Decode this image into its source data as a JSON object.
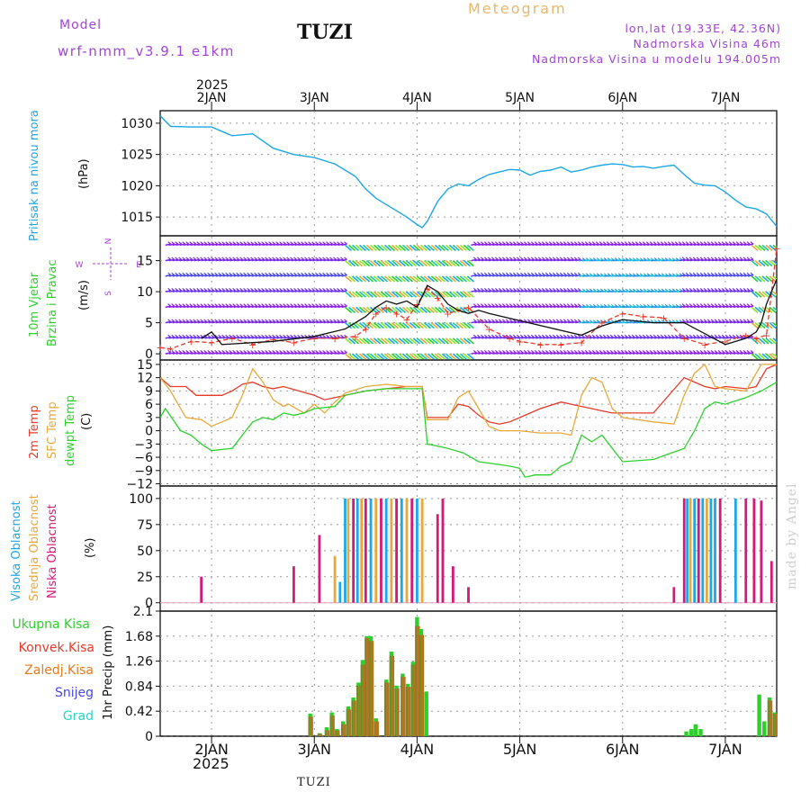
{
  "header": {
    "model_label": "Model",
    "model_run": "wrf-nmm_v3.9.1  e1km",
    "station": "TUZI",
    "chart_name": "Meteogram",
    "loc_line1": "lon,lat (19.33E, 42.36N)",
    "loc_line2": "Nadmorska Visina 46m",
    "loc_line3": "Nadmorska Visina u modelu 194.005m"
  },
  "footer": {
    "station": "TUZI",
    "watermark": "made by Angel"
  },
  "colors": {
    "pressure": "#1ca7e8",
    "temp2m": "#e83a2a",
    "sfc_temp": "#e8a83a",
    "dewpoint": "#2bd12b",
    "wind_label": "#2bd12b",
    "high_cloud": "#1ca7e8",
    "mid_cloud": "#e8a83a",
    "low_cloud": "#d6187a",
    "precip_total": "#2bd12b",
    "precip_conv": "#e83a2a",
    "precip_strat": "#e87a1a",
    "snow": "#4a48e8",
    "hail": "#2bd1c8"
  },
  "chart_data": [
    {
      "type": "line",
      "panel": "pressure",
      "ylabel_colored": "Pritisak na nivou mora",
      "unit": "(hPa)",
      "yticks": [
        1015,
        1020,
        1025,
        1030
      ],
      "ylim": [
        1012,
        1032
      ],
      "x_top_labels": [
        "2JAN",
        "3JAN",
        "4JAN",
        "5JAN",
        "6JAN",
        "7JAN"
      ],
      "year_top": "2025",
      "grid": true,
      "series": [
        {
          "x": [
            1.5,
            1.6,
            1.8,
            2.0,
            2.2,
            2.4,
            2.6,
            2.8,
            3.0,
            3.2,
            3.4,
            3.5,
            3.6,
            3.7,
            3.8,
            3.9,
            4.0,
            4.05,
            4.1,
            4.2,
            4.3,
            4.4,
            4.5,
            4.6,
            4.7,
            4.8,
            4.9,
            5.0,
            5.1,
            5.2,
            5.3,
            5.4,
            5.5,
            5.6,
            5.7,
            5.8,
            5.9,
            6.0,
            6.1,
            6.2,
            6.3,
            6.4,
            6.5,
            6.6,
            6.7,
            6.8,
            6.9,
            7.0,
            7.1,
            7.2,
            7.3,
            7.4,
            7.5
          ],
          "y": [
            1031.2,
            1029.5,
            1029.4,
            1029.4,
            1028.0,
            1028.3,
            1026.0,
            1025.0,
            1024.5,
            1023.5,
            1021.5,
            1019.5,
            1018.0,
            1017.0,
            1016.0,
            1015.0,
            1013.8,
            1013.3,
            1014.3,
            1017.5,
            1019.5,
            1020.3,
            1020.0,
            1021.0,
            1021.8,
            1022.2,
            1022.6,
            1022.5,
            1021.7,
            1022.3,
            1022.5,
            1023.0,
            1022.2,
            1022.5,
            1023.0,
            1023.3,
            1023.5,
            1023.4,
            1023.0,
            1023.1,
            1022.8,
            1023.1,
            1023.3,
            1021.8,
            1020.4,
            1020.1,
            1020.0,
            1019.0,
            1017.7,
            1016.6,
            1016.3,
            1015.5,
            1013.5
          ]
        }
      ]
    },
    {
      "type": "line",
      "panel": "wind",
      "ylabel_colored1": "10m Vjetar",
      "ylabel_colored2": "Brzina i Pravac",
      "unit": "(m/s)",
      "legend_compass": [
        "N",
        "W",
        "E",
        "S"
      ],
      "yticks": [
        0,
        5,
        10,
        15
      ],
      "ylim": [
        -1,
        19
      ],
      "series": [
        {
          "name": "gust",
          "x": [
            1.5,
            1.6,
            1.8,
            2.0,
            2.2,
            2.4,
            2.6,
            2.8,
            3.0,
            3.2,
            3.4,
            3.5,
            3.6,
            3.7,
            3.8,
            3.9,
            4.0,
            4.1,
            4.2,
            4.3,
            4.5,
            4.7,
            4.9,
            5.0,
            5.2,
            5.4,
            5.6,
            5.8,
            6.0,
            6.2,
            6.4,
            6.6,
            6.8,
            7.0,
            7.2,
            7.3,
            7.4,
            7.5
          ],
          "y": [
            1.0,
            0.8,
            2.0,
            1.8,
            2.5,
            1.5,
            2.3,
            1.8,
            2.5,
            2.5,
            2.8,
            4.0,
            6.5,
            7.5,
            6.5,
            5.5,
            8.0,
            10.5,
            9.0,
            6.5,
            7.5,
            4.0,
            2.5,
            2.0,
            1.5,
            1.5,
            1.8,
            5.0,
            6.5,
            6.0,
            5.8,
            2.5,
            1.5,
            2.0,
            3.0,
            2.5,
            3.0,
            17.0
          ]
        },
        {
          "name": "speed",
          "x": [
            1.9,
            2.0,
            2.1,
            2.4,
            2.6,
            3.0,
            3.3,
            3.5,
            3.6,
            3.7,
            3.8,
            3.9,
            4.0,
            4.1,
            4.2,
            4.3,
            4.4,
            4.5,
            4.6,
            4.7,
            5.6,
            5.8,
            6.0,
            6.3,
            6.6,
            7.0,
            7.2,
            7.3,
            7.35,
            7.4,
            7.5
          ],
          "y": [
            2.5,
            3.5,
            1.5,
            1.8,
            2.0,
            2.8,
            4.0,
            6.0,
            7.5,
            8.5,
            8.0,
            8.5,
            7.5,
            11.0,
            10.0,
            8.0,
            7.0,
            6.5,
            7.0,
            6.5,
            3.0,
            4.5,
            5.5,
            5.0,
            5.0,
            1.5,
            2.5,
            3.5,
            5.0,
            8.0,
            12.0
          ]
        }
      ]
    },
    {
      "type": "line",
      "panel": "temperature",
      "labels": [
        "2m Temp",
        "SFC Temp",
        "dewpt Temp"
      ],
      "unit": "(C)",
      "yticks": [
        -12,
        -9,
        -6,
        -3,
        0,
        3,
        6,
        9,
        12,
        15
      ],
      "ylim": [
        -12.5,
        16
      ],
      "series": [
        {
          "name": "2m Temp",
          "x": [
            1.5,
            1.6,
            1.75,
            1.85,
            2.0,
            2.1,
            2.2,
            2.3,
            2.4,
            2.5,
            2.6,
            2.7,
            2.85,
            3.0,
            3.1,
            3.2,
            3.3,
            3.5,
            3.7,
            3.9,
            4.05,
            4.1,
            4.3,
            4.4,
            4.5,
            4.6,
            4.7,
            4.8,
            4.9,
            5.0,
            5.2,
            5.4,
            5.5,
            5.6,
            5.7,
            5.8,
            5.9,
            6.0,
            6.3,
            6.6,
            6.8,
            6.9,
            7.0,
            7.2,
            7.3,
            7.4,
            7.5
          ],
          "y": [
            12,
            10,
            10,
            8,
            8,
            8,
            9,
            10.5,
            11,
            10,
            9.5,
            10,
            9,
            8,
            7,
            7.5,
            8,
            9,
            9.5,
            10,
            10,
            3,
            3,
            6,
            5.5,
            3.5,
            2,
            1.5,
            2,
            3,
            5,
            6.5,
            6,
            5.5,
            5,
            4.5,
            4,
            4,
            4,
            12,
            10,
            9.5,
            10,
            9.5,
            10,
            14,
            15
          ]
        },
        {
          "name": "SFC Temp",
          "x": [
            1.5,
            1.6,
            1.75,
            1.9,
            2.0,
            2.2,
            2.3,
            2.4,
            2.5,
            2.6,
            2.7,
            2.75,
            2.9,
            3.0,
            3.1,
            3.2,
            3.3,
            3.5,
            3.7,
            3.9,
            4.05,
            4.1,
            4.3,
            4.4,
            4.5,
            4.6,
            4.7,
            4.8,
            4.9,
            5.0,
            5.2,
            5.3,
            5.4,
            5.5,
            5.6,
            5.7,
            5.8,
            5.9,
            6.0,
            6.3,
            6.5,
            6.6,
            6.7,
            6.8,
            6.9,
            7.0,
            7.2,
            7.35,
            7.5
          ],
          "y": [
            12,
            9,
            3,
            2.5,
            1,
            3,
            8,
            14,
            11,
            7,
            5.5,
            6,
            4,
            6,
            4,
            6.5,
            8.5,
            10,
            10.5,
            10,
            10,
            2.5,
            2.5,
            7.5,
            9,
            5,
            1,
            0,
            0,
            0,
            -0.5,
            -0.5,
            -0.5,
            -1,
            8,
            12,
            11,
            5,
            3,
            2,
            1.5,
            8,
            13,
            15,
            10,
            9.5,
            9,
            15,
            15
          ]
        },
        {
          "name": "dewpt Temp",
          "x": [
            1.5,
            1.55,
            1.7,
            1.8,
            1.9,
            2.0,
            2.2,
            2.3,
            2.4,
            2.5,
            2.6,
            2.7,
            2.8,
            2.9,
            3.0,
            3.2,
            3.3,
            3.5,
            3.7,
            3.9,
            4.05,
            4.1,
            4.2,
            4.3,
            4.45,
            4.6,
            4.75,
            4.9,
            5.0,
            5.05,
            5.15,
            5.3,
            5.4,
            5.5,
            5.6,
            5.7,
            5.8,
            6.0,
            6.3,
            6.6,
            6.7,
            6.8,
            6.9,
            7.0,
            7.2,
            7.35,
            7.5
          ],
          "y": [
            3,
            5,
            0,
            -1,
            -3,
            -4.5,
            -4,
            -1,
            2,
            3,
            2.5,
            4,
            3.5,
            4,
            5,
            5.5,
            8,
            9,
            9.5,
            9.5,
            9.5,
            -3,
            -3.5,
            -4,
            -5,
            -7,
            -7.5,
            -8,
            -8.5,
            -10.5,
            -10,
            -10,
            -8,
            -7,
            -1,
            -2.5,
            -1,
            -7,
            -6.5,
            -4,
            0,
            5,
            6.5,
            6,
            7.5,
            9,
            11
          ]
        }
      ]
    },
    {
      "type": "bar",
      "panel": "clouds",
      "labels": [
        "Visoka Oblacnost",
        "Srednja Oblacnost",
        "Niska Oblacnost"
      ],
      "unit": "(%)",
      "yticks": [
        0,
        25,
        50,
        75,
        100
      ],
      "ylim": [
        0,
        100
      ],
      "bars": [
        {
          "x": 1.9,
          "v": 25,
          "c": "low"
        },
        {
          "x": 2.8,
          "v": 35,
          "c": "low"
        },
        {
          "x": 3.05,
          "v": 65,
          "c": "low"
        },
        {
          "x": 3.2,
          "v": 45,
          "c": "mid"
        },
        {
          "x": 3.25,
          "v": 20,
          "c": "high"
        },
        {
          "x": 3.3,
          "v": 100,
          "c": "high"
        },
        {
          "x": 3.33,
          "v": 100,
          "c": "mid"
        },
        {
          "x": 3.38,
          "v": 100,
          "c": "low"
        },
        {
          "x": 3.42,
          "v": 100,
          "c": "high"
        },
        {
          "x": 3.46,
          "v": 100,
          "c": "mid"
        },
        {
          "x": 3.5,
          "v": 100,
          "c": "low"
        },
        {
          "x": 3.55,
          "v": 100,
          "c": "high"
        },
        {
          "x": 3.6,
          "v": 100,
          "c": "mid"
        },
        {
          "x": 3.65,
          "v": 100,
          "c": "low"
        },
        {
          "x": 3.7,
          "v": 100,
          "c": "high"
        },
        {
          "x": 3.75,
          "v": 100,
          "c": "mid"
        },
        {
          "x": 3.8,
          "v": 100,
          "c": "low"
        },
        {
          "x": 3.85,
          "v": 100,
          "c": "high"
        },
        {
          "x": 3.9,
          "v": 100,
          "c": "mid"
        },
        {
          "x": 3.95,
          "v": 100,
          "c": "low"
        },
        {
          "x": 4.0,
          "v": 100,
          "c": "high"
        },
        {
          "x": 4.05,
          "v": 100,
          "c": "mid"
        },
        {
          "x": 4.2,
          "v": 85,
          "c": "low"
        },
        {
          "x": 4.25,
          "v": 100,
          "c": "low"
        },
        {
          "x": 4.35,
          "v": 35,
          "c": "low"
        },
        {
          "x": 4.5,
          "v": 15,
          "c": "low"
        },
        {
          "x": 6.5,
          "v": 15,
          "c": "low"
        },
        {
          "x": 6.6,
          "v": 100,
          "c": "low"
        },
        {
          "x": 6.63,
          "v": 100,
          "c": "high"
        },
        {
          "x": 6.66,
          "v": 100,
          "c": "mid"
        },
        {
          "x": 6.7,
          "v": 100,
          "c": "high"
        },
        {
          "x": 6.74,
          "v": 100,
          "c": "low"
        },
        {
          "x": 6.78,
          "v": 100,
          "c": "high"
        },
        {
          "x": 6.82,
          "v": 100,
          "c": "mid"
        },
        {
          "x": 6.86,
          "v": 100,
          "c": "high"
        },
        {
          "x": 6.9,
          "v": 100,
          "c": "high"
        },
        {
          "x": 6.95,
          "v": 100,
          "c": "low"
        },
        {
          "x": 7.1,
          "v": 100,
          "c": "high"
        },
        {
          "x": 7.2,
          "v": 100,
          "c": "low"
        },
        {
          "x": 7.28,
          "v": 100,
          "c": "low"
        },
        {
          "x": 7.35,
          "v": 98,
          "c": "low"
        },
        {
          "x": 7.45,
          "v": 40,
          "c": "low"
        }
      ]
    },
    {
      "type": "bar",
      "panel": "precip",
      "legend": [
        "Ukupna Kisa",
        "Konvek.Kisa",
        "Zaledj.Kisa",
        "Snijeg",
        "Grad"
      ],
      "unit": "1hr Precip (mm)",
      "yticks": [
        0,
        0.42,
        0.84,
        1.26,
        1.68,
        2.1
      ],
      "ylim": [
        0,
        2.1
      ],
      "x_bottom_labels": [
        "2JAN",
        "3JAN",
        "4JAN",
        "5JAN",
        "6JAN",
        "7JAN"
      ],
      "year_bottom": "2025",
      "bars": [
        {
          "x": 2.96,
          "t": 0.38,
          "c": 0.33
        },
        {
          "x": 3.05,
          "t": 0.05,
          "c": 0.04
        },
        {
          "x": 3.12,
          "t": 0.15,
          "c": 0.1
        },
        {
          "x": 3.17,
          "t": 0.4,
          "c": 0.35
        },
        {
          "x": 3.22,
          "t": 0.12,
          "c": 0.1
        },
        {
          "x": 3.28,
          "t": 0.25,
          "c": 0.2
        },
        {
          "x": 3.33,
          "t": 0.5,
          "c": 0.45
        },
        {
          "x": 3.38,
          "t": 0.65,
          "c": 0.6
        },
        {
          "x": 3.43,
          "t": 0.9,
          "c": 0.85
        },
        {
          "x": 3.47,
          "t": 1.28,
          "c": 1.2
        },
        {
          "x": 3.51,
          "t": 1.68,
          "c": 1.65
        },
        {
          "x": 3.55,
          "t": 1.68,
          "c": 1.6
        },
        {
          "x": 3.6,
          "t": 0.3,
          "c": 0.25
        },
        {
          "x": 3.7,
          "t": 0.95,
          "c": 0.9
        },
        {
          "x": 3.75,
          "t": 1.42,
          "c": 1.35
        },
        {
          "x": 3.8,
          "t": 0.85,
          "c": 0.8
        },
        {
          "x": 3.86,
          "t": 1.05,
          "c": 1.0
        },
        {
          "x": 3.91,
          "t": 0.88,
          "c": 0.83
        },
        {
          "x": 3.96,
          "t": 1.25,
          "c": 1.2
        },
        {
          "x": 4.0,
          "t": 2.0,
          "c": 1.85
        },
        {
          "x": 4.04,
          "t": 1.8,
          "c": 1.7
        },
        {
          "x": 4.09,
          "t": 0.75,
          "c": 0.0
        },
        {
          "x": 6.62,
          "t": 0.08,
          "c": 0.0
        },
        {
          "x": 6.67,
          "t": 0.12,
          "c": 0.0
        },
        {
          "x": 6.71,
          "t": 0.2,
          "c": 0.0
        },
        {
          "x": 6.76,
          "t": 0.12,
          "c": 0.0
        },
        {
          "x": 7.33,
          "t": 0.7,
          "c": 0.0
        },
        {
          "x": 7.38,
          "t": 0.25,
          "c": 0.0
        },
        {
          "x": 7.43,
          "t": 0.65,
          "c": 0.6
        },
        {
          "x": 7.48,
          "t": 0.4,
          "c": 0.38
        }
      ]
    }
  ]
}
